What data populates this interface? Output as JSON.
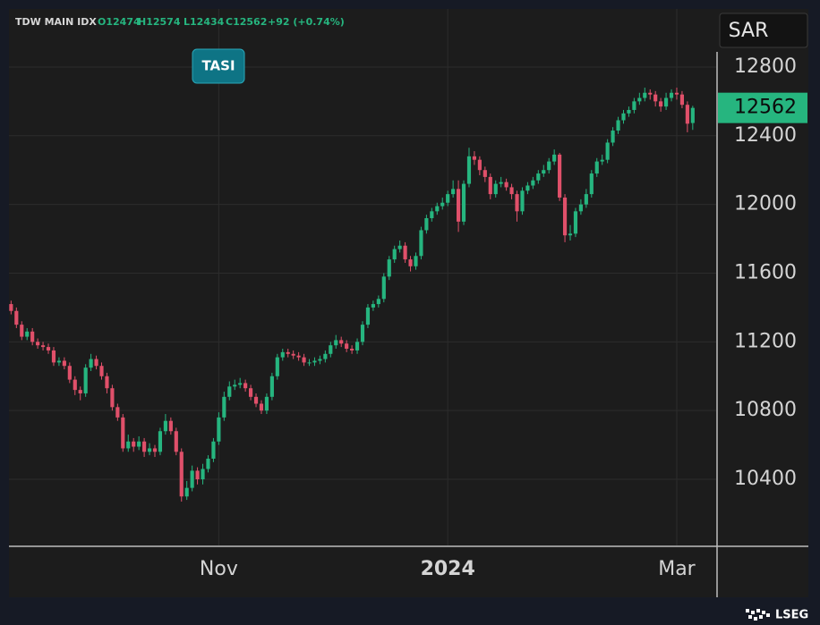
{
  "chart_data": {
    "type": "candlestick",
    "header": {
      "symbol": "TDW MAIN IDX",
      "open": "O12474",
      "high": "H12574",
      "low": "L12434",
      "close": "C12562",
      "change": "+92 (+0.74%)"
    },
    "currency": "SAR",
    "annotation": "TASI",
    "brand": "LSEG",
    "last_price": 12562,
    "up_color": "#26b57f",
    "down_color": "#e0506a",
    "grid": true,
    "xlim": [
      -0.4,
      132.4
    ],
    "xticks": [
      {
        "value": 39,
        "label": "Nov"
      },
      {
        "value": 82,
        "label": "2024"
      },
      {
        "value": 125,
        "label": "Mar"
      }
    ],
    "ylim": [
      10015,
      13138
    ],
    "yticks": [
      10400,
      10800,
      11200,
      11600,
      12000,
      12400,
      12800
    ],
    "candles": [
      [
        11420,
        11440,
        11360,
        11380
      ],
      [
        11380,
        11400,
        11280,
        11300
      ],
      [
        11300,
        11320,
        11210,
        11230
      ],
      [
        11230,
        11280,
        11210,
        11260
      ],
      [
        11260,
        11280,
        11180,
        11200
      ],
      [
        11200,
        11220,
        11160,
        11180
      ],
      [
        11180,
        11200,
        11150,
        11170
      ],
      [
        11170,
        11190,
        11130,
        11150
      ],
      [
        11150,
        11170,
        11060,
        11080
      ],
      [
        11080,
        11110,
        11060,
        11090
      ],
      [
        11090,
        11110,
        11040,
        11060
      ],
      [
        11060,
        11080,
        10960,
        10980
      ],
      [
        10980,
        11000,
        10890,
        10920
      ],
      [
        10920,
        10940,
        10860,
        10900
      ],
      [
        10900,
        11070,
        10880,
        11050
      ],
      [
        11050,
        11130,
        11030,
        11100
      ],
      [
        11100,
        11120,
        11040,
        11060
      ],
      [
        11060,
        11080,
        10980,
        11000
      ],
      [
        11000,
        11020,
        10900,
        10930
      ],
      [
        10930,
        10950,
        10800,
        10820
      ],
      [
        10820,
        10840,
        10740,
        10760
      ],
      [
        10760,
        10780,
        10560,
        10580
      ],
      [
        10580,
        10660,
        10560,
        10620
      ],
      [
        10620,
        10640,
        10560,
        10590
      ],
      [
        10590,
        10650,
        10570,
        10620
      ],
      [
        10620,
        10640,
        10530,
        10560
      ],
      [
        10560,
        10610,
        10540,
        10580
      ],
      [
        10580,
        10600,
        10530,
        10560
      ],
      [
        10560,
        10700,
        10540,
        10680
      ],
      [
        10680,
        10780,
        10660,
        10740
      ],
      [
        10740,
        10760,
        10660,
        10680
      ],
      [
        10680,
        10700,
        10540,
        10560
      ],
      [
        10560,
        10580,
        10270,
        10300
      ],
      [
        10300,
        10390,
        10280,
        10350
      ],
      [
        10350,
        10480,
        10330,
        10450
      ],
      [
        10450,
        10470,
        10370,
        10400
      ],
      [
        10400,
        10490,
        10370,
        10460
      ],
      [
        10460,
        10540,
        10440,
        10520
      ],
      [
        10520,
        10640,
        10500,
        10620
      ],
      [
        10620,
        10790,
        10600,
        10760
      ],
      [
        10760,
        10910,
        10740,
        10880
      ],
      [
        10880,
        10970,
        10860,
        10940
      ],
      [
        10940,
        10980,
        10920,
        10950
      ],
      [
        10950,
        10990,
        10930,
        10960
      ],
      [
        10960,
        10980,
        10910,
        10930
      ],
      [
        10930,
        10950,
        10860,
        10880
      ],
      [
        10880,
        10900,
        10820,
        10840
      ],
      [
        10840,
        10860,
        10780,
        10800
      ],
      [
        10800,
        10900,
        10780,
        10880
      ],
      [
        10880,
        11020,
        10860,
        11000
      ],
      [
        11000,
        11130,
        10980,
        11110
      ],
      [
        11110,
        11160,
        11090,
        11140
      ],
      [
        11140,
        11160,
        11110,
        11130
      ],
      [
        11130,
        11150,
        11100,
        11120
      ],
      [
        11120,
        11140,
        11090,
        11110
      ],
      [
        11110,
        11130,
        11060,
        11080
      ],
      [
        11080,
        11100,
        11060,
        11080
      ],
      [
        11080,
        11110,
        11060,
        11090
      ],
      [
        11090,
        11120,
        11070,
        11100
      ],
      [
        11100,
        11150,
        11080,
        11130
      ],
      [
        11130,
        11200,
        11110,
        11180
      ],
      [
        11180,
        11240,
        11160,
        11210
      ],
      [
        11210,
        11230,
        11170,
        11190
      ],
      [
        11190,
        11210,
        11140,
        11160
      ],
      [
        11160,
        11180,
        11130,
        11150
      ],
      [
        11150,
        11220,
        11130,
        11200
      ],
      [
        11200,
        11320,
        11180,
        11300
      ],
      [
        11300,
        11420,
        11280,
        11400
      ],
      [
        11400,
        11440,
        11380,
        11420
      ],
      [
        11420,
        11470,
        11400,
        11450
      ],
      [
        11450,
        11600,
        11430,
        11580
      ],
      [
        11580,
        11700,
        11560,
        11680
      ],
      [
        11680,
        11760,
        11660,
        11740
      ],
      [
        11740,
        11790,
        11720,
        11760
      ],
      [
        11760,
        11780,
        11660,
        11680
      ],
      [
        11680,
        11700,
        11610,
        11640
      ],
      [
        11640,
        11720,
        11620,
        11700
      ],
      [
        11700,
        11870,
        11680,
        11850
      ],
      [
        11850,
        11940,
        11830,
        11920
      ],
      [
        11920,
        11980,
        11900,
        11960
      ],
      [
        11960,
        12010,
        11940,
        11990
      ],
      [
        11990,
        12040,
        11970,
        12010
      ],
      [
        12010,
        12080,
        11990,
        12060
      ],
      [
        12060,
        12140,
        12040,
        12090
      ],
      [
        12090,
        12140,
        11840,
        11900
      ],
      [
        11900,
        12140,
        11880,
        12120
      ],
      [
        12120,
        12330,
        12100,
        12280
      ],
      [
        12280,
        12310,
        12230,
        12260
      ],
      [
        12260,
        12280,
        12170,
        12200
      ],
      [
        12200,
        12220,
        12130,
        12160
      ],
      [
        12160,
        12180,
        12030,
        12060
      ],
      [
        12060,
        12140,
        12040,
        12120
      ],
      [
        12120,
        12160,
        12100,
        12130
      ],
      [
        12130,
        12150,
        12080,
        12100
      ],
      [
        12100,
        12120,
        12030,
        12060
      ],
      [
        12060,
        12080,
        11900,
        11960
      ],
      [
        11960,
        12100,
        11940,
        12080
      ],
      [
        12080,
        12130,
        12060,
        12110
      ],
      [
        12110,
        12160,
        12090,
        12140
      ],
      [
        12140,
        12200,
        12120,
        12180
      ],
      [
        12180,
        12230,
        12160,
        12200
      ],
      [
        12200,
        12270,
        12180,
        12250
      ],
      [
        12250,
        12320,
        12230,
        12290
      ],
      [
        12290,
        12300,
        12020,
        12040
      ],
      [
        12040,
        12060,
        11780,
        11820
      ],
      [
        11820,
        11880,
        11790,
        11830
      ],
      [
        11830,
        11980,
        11810,
        11960
      ],
      [
        11960,
        12030,
        11940,
        12000
      ],
      [
        12000,
        12090,
        11980,
        12060
      ],
      [
        12060,
        12200,
        12040,
        12180
      ],
      [
        12180,
        12270,
        12160,
        12250
      ],
      [
        12250,
        12290,
        12230,
        12260
      ],
      [
        12260,
        12380,
        12240,
        12360
      ],
      [
        12360,
        12450,
        12340,
        12430
      ],
      [
        12430,
        12510,
        12410,
        12490
      ],
      [
        12490,
        12550,
        12470,
        12530
      ],
      [
        12530,
        12570,
        12510,
        12550
      ],
      [
        12550,
        12620,
        12530,
        12600
      ],
      [
        12600,
        12650,
        12580,
        12620
      ],
      [
        12620,
        12680,
        12600,
        12650
      ],
      [
        12650,
        12670,
        12610,
        12640
      ],
      [
        12640,
        12660,
        12570,
        12600
      ],
      [
        12600,
        12620,
        12540,
        12570
      ],
      [
        12570,
        12650,
        12550,
        12620
      ],
      [
        12620,
        12670,
        12600,
        12650
      ],
      [
        12650,
        12680,
        12610,
        12640
      ],
      [
        12640,
        12660,
        12560,
        12580
      ],
      [
        12580,
        12600,
        12420,
        12470
      ],
      [
        12474,
        12574,
        12434,
        12562
      ]
    ]
  }
}
